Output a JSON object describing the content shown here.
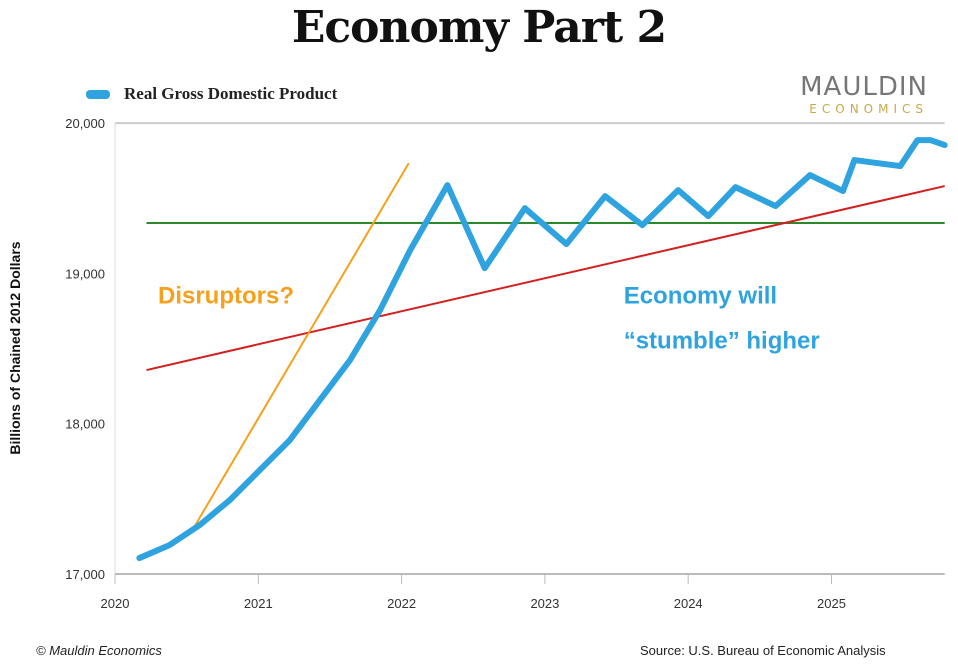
{
  "title": "Economy Part 2",
  "logo": {
    "line1": "MAULDIN",
    "line2": "ECONOMICS"
  },
  "footer": {
    "left": "© Mauldin Economics",
    "right": "Source: U.S. Bureau of Economic Analysis"
  },
  "chart_data": {
    "type": "line",
    "title": "Economy Part 2",
    "xlabel": "",
    "ylabel": "Billions of Chained 2012 Dollars",
    "xlim": [
      2020,
      2025.79
    ],
    "ylim": [
      17000,
      20000
    ],
    "xticks": [
      "2020",
      "2021",
      "2022",
      "2023",
      "2024",
      "2025"
    ],
    "yticks": [
      "17,000",
      "18,000",
      "19,000",
      "20,000"
    ],
    "legend_position": "top-left",
    "grid": false,
    "series": [
      {
        "name": "Real Gross Domestic Product",
        "color": "#2ea3e0",
        "x": [
          2020.17,
          2020.38,
          2020.59,
          2020.8,
          2021.01,
          2021.22,
          2021.43,
          2021.64,
          2021.85,
          2022.06,
          2022.2,
          2022.32,
          2022.58,
          2022.86,
          2023.15,
          2023.42,
          2023.68,
          2023.93,
          2024.14,
          2024.33,
          2024.61,
          2024.85,
          2025.08,
          2025.16,
          2025.48,
          2025.6,
          2025.69,
          2025.79
        ],
        "y": [
          17106,
          17192,
          17325,
          17491,
          17691,
          17891,
          18157,
          18423,
          18756,
          19155,
          19388,
          19587,
          19035,
          19434,
          19195,
          19514,
          19321,
          19554,
          19381,
          19574,
          19448,
          19654,
          19548,
          19754,
          19714,
          19887,
          19887,
          19854
        ]
      }
    ],
    "lines": [
      {
        "kind": "horizontal",
        "color": "#2a8a2a",
        "x": [
          2020.22,
          2025.79
        ],
        "y": [
          19335,
          19335
        ]
      },
      {
        "kind": "trend",
        "color": "#d21f1f",
        "x": [
          2020.22,
          2025.79
        ],
        "y": [
          18357,
          19581
        ]
      },
      {
        "kind": "trend",
        "color": "#f5a11c",
        "x": [
          2020.54,
          2022.05
        ],
        "y": [
          17292,
          19734
        ]
      }
    ],
    "annotations": [
      {
        "text": "Disruptors?",
        "color": "#f5a11c",
        "x": 2020.3,
        "y": 18800
      },
      {
        "text": "Economy will",
        "color": "#2ea3e0",
        "x": 2023.55,
        "y": 18800
      },
      {
        "text": "“stumble” higher",
        "color": "#2ea3e0",
        "x": 2023.55,
        "y": 18500
      }
    ]
  }
}
